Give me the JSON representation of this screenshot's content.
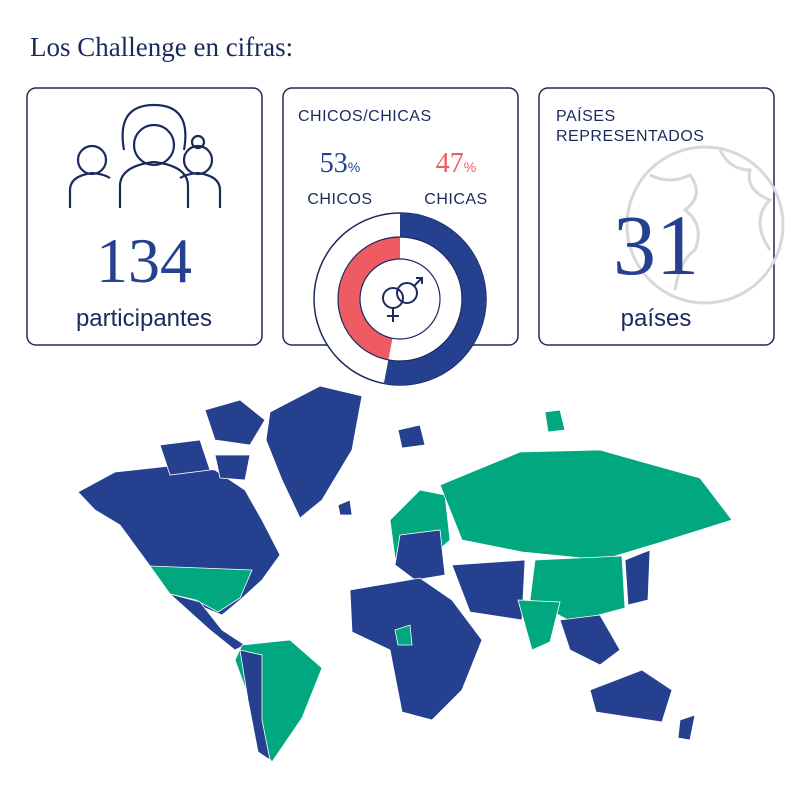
{
  "title": "Los Challenge en cifras:",
  "participants": {
    "value": 134,
    "label": "participantes"
  },
  "gender": {
    "title": "CHICOS/CHICAS",
    "boys": {
      "value": 53,
      "unit": "%",
      "label": "CHICOS",
      "color": "#24408f"
    },
    "girls": {
      "value": 47,
      "unit": "%",
      "label": "CHICAS",
      "color": "#ee5b63"
    }
  },
  "countries": {
    "title": "PAÍSES REPRESENTADOS",
    "value": 31,
    "label": "países"
  }
}
